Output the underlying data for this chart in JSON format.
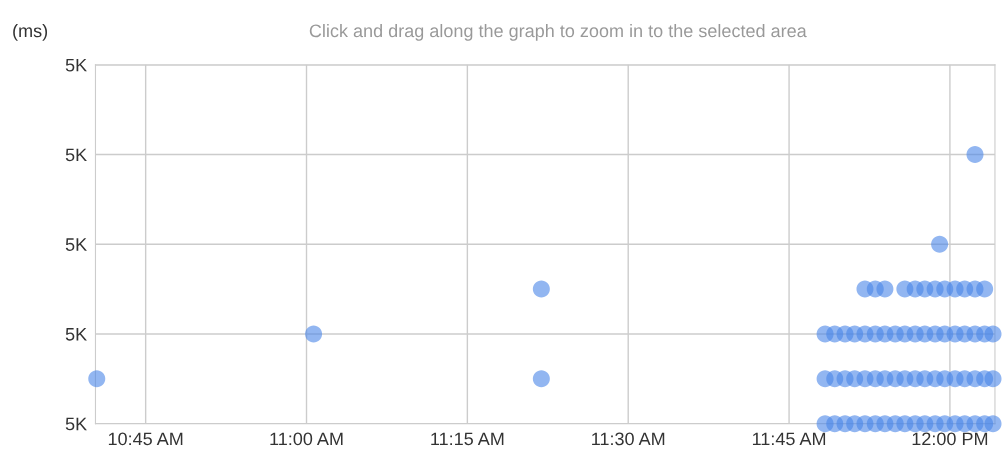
{
  "chart_data": {
    "type": "scatter",
    "title": "Click and drag along the graph to zoom in to the selected area",
    "ylabel": "(ms)",
    "marker": "circle",
    "grid": true,
    "xlim": [
      10.672,
      12.07
    ],
    "ylim": [
      4980,
      5020
    ],
    "xticks": [
      {
        "value": 10.75,
        "label": "10:45 AM"
      },
      {
        "value": 11,
        "label": "11:00 AM"
      },
      {
        "value": 11.25,
        "label": "11:15 AM"
      },
      {
        "value": 11.5,
        "label": "11:30 AM"
      },
      {
        "value": 11.75,
        "label": "11:45 AM"
      },
      {
        "value": 12,
        "label": "12:00 PM"
      }
    ],
    "yticks": [
      {
        "value": 4980,
        "label": "5K"
      },
      {
        "value": 4990,
        "label": "5K"
      },
      {
        "value": 5000,
        "label": "5K"
      },
      {
        "value": 5010,
        "label": "5K"
      },
      {
        "value": 5020,
        "label": "5K"
      }
    ],
    "series": [
      {
        "color": "#4a86e8",
        "x": [
          10.674,
          11.011,
          11.365,
          11.365,
          11.984,
          12.039
        ],
        "values": [
          4985,
          4990,
          4995,
          4985,
          5000,
          5010
        ]
      },
      {
        "color": "#4a86e8",
        "x": [
          11.806,
          11.821,
          11.837,
          11.852,
          11.868,
          11.884,
          11.899,
          11.915,
          11.93,
          11.946,
          11.961,
          11.977,
          11.992,
          12.008,
          12.023,
          12.039,
          12.054,
          12.067
        ],
        "values": [
          4980,
          4980,
          4980,
          4980,
          4980,
          4980,
          4980,
          4980,
          4980,
          4980,
          4980,
          4980,
          4980,
          4980,
          4980,
          4980,
          4980,
          4980
        ]
      },
      {
        "color": "#4a86e8",
        "x": [
          11.806,
          11.821,
          11.837,
          11.852,
          11.868,
          11.884,
          11.899,
          11.915,
          11.93,
          11.946,
          11.961,
          11.977,
          11.992,
          12.008,
          12.023,
          12.039,
          12.054,
          12.067
        ],
        "values": [
          4985,
          4985,
          4985,
          4985,
          4985,
          4985,
          4985,
          4985,
          4985,
          4985,
          4985,
          4985,
          4985,
          4985,
          4985,
          4985,
          4985,
          4985
        ]
      },
      {
        "color": "#4a86e8",
        "x": [
          11.806,
          11.821,
          11.837,
          11.852,
          11.868,
          11.884,
          11.899,
          11.915,
          11.93,
          11.946,
          11.961,
          11.977,
          11.992,
          12.008,
          12.023,
          12.039,
          12.054,
          12.067
        ],
        "values": [
          4990,
          4990,
          4990,
          4990,
          4990,
          4990,
          4990,
          4990,
          4990,
          4990,
          4990,
          4990,
          4990,
          4990,
          4990,
          4990,
          4990,
          4990
        ]
      },
      {
        "color": "#4a86e8",
        "x": [
          11.868,
          11.884,
          11.899,
          11.93,
          11.946,
          11.961,
          11.977,
          11.992,
          12.008,
          12.023,
          12.039,
          12.054
        ],
        "values": [
          4995,
          4995,
          4995,
          4995,
          4995,
          4995,
          4995,
          4995,
          4995,
          4995,
          4995,
          4995
        ]
      }
    ]
  }
}
